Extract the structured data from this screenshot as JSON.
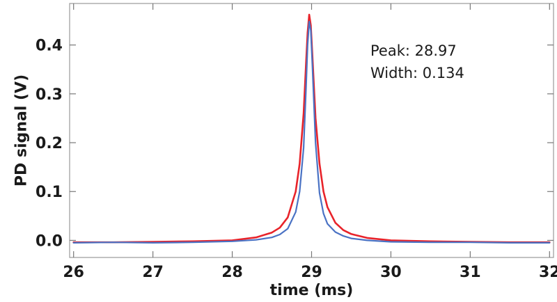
{
  "chart_data": {
    "type": "line",
    "xlabel": "time (ms)",
    "ylabel": "PD signal (V)",
    "xlim": [
      25.95,
      32.05
    ],
    "ylim": [
      -0.035,
      0.485
    ],
    "x_ticks": [
      26,
      27,
      28,
      29,
      30,
      31,
      32
    ],
    "y_ticks": [
      0.0,
      0.1,
      0.2,
      0.3,
      0.4
    ],
    "y_tick_labels": [
      "0.0",
      "0.1",
      "0.2",
      "0.3",
      "0.4"
    ],
    "grid": false,
    "legend": "none",
    "annotations": {
      "peak": "Peak: 28.97",
      "width": "Width: 0.134"
    },
    "series": [
      {
        "role": "measured",
        "color": "#4a72c4",
        "x": [
          26.0,
          26.5,
          27.0,
          27.5,
          28.0,
          28.3,
          28.5,
          28.6,
          28.7,
          28.8,
          28.85,
          28.9,
          28.93,
          28.95,
          28.97,
          28.99,
          29.01,
          29.05,
          29.1,
          29.15,
          29.2,
          29.3,
          29.4,
          29.5,
          29.7,
          30.0,
          30.5,
          31.0,
          31.5,
          32.0
        ],
        "values": [
          -0.005,
          -0.004,
          -0.005,
          -0.004,
          -0.002,
          0.001,
          0.006,
          0.012,
          0.024,
          0.058,
          0.1,
          0.19,
          0.31,
          0.4,
          0.448,
          0.43,
          0.36,
          0.2,
          0.097,
          0.055,
          0.034,
          0.017,
          0.009,
          0.004,
          0.0,
          -0.003,
          -0.004,
          -0.004,
          -0.005,
          -0.005
        ]
      },
      {
        "role": "fit",
        "color": "#e8232a",
        "x": [
          26.0,
          26.5,
          27.0,
          27.5,
          28.0,
          28.3,
          28.5,
          28.6,
          28.7,
          28.8,
          28.85,
          28.9,
          28.93,
          28.95,
          28.97,
          28.99,
          29.01,
          29.05,
          29.1,
          29.15,
          29.2,
          29.3,
          29.4,
          29.5,
          29.7,
          30.0,
          30.5,
          31.0,
          31.5,
          32.0
        ],
        "values": [
          -0.004,
          -0.004,
          -0.003,
          -0.002,
          0.0,
          0.006,
          0.016,
          0.026,
          0.047,
          0.1,
          0.157,
          0.26,
          0.36,
          0.425,
          0.462,
          0.44,
          0.38,
          0.25,
          0.157,
          0.1,
          0.068,
          0.036,
          0.021,
          0.013,
          0.005,
          0.0,
          -0.002,
          -0.003,
          -0.004,
          -0.004
        ]
      }
    ]
  }
}
